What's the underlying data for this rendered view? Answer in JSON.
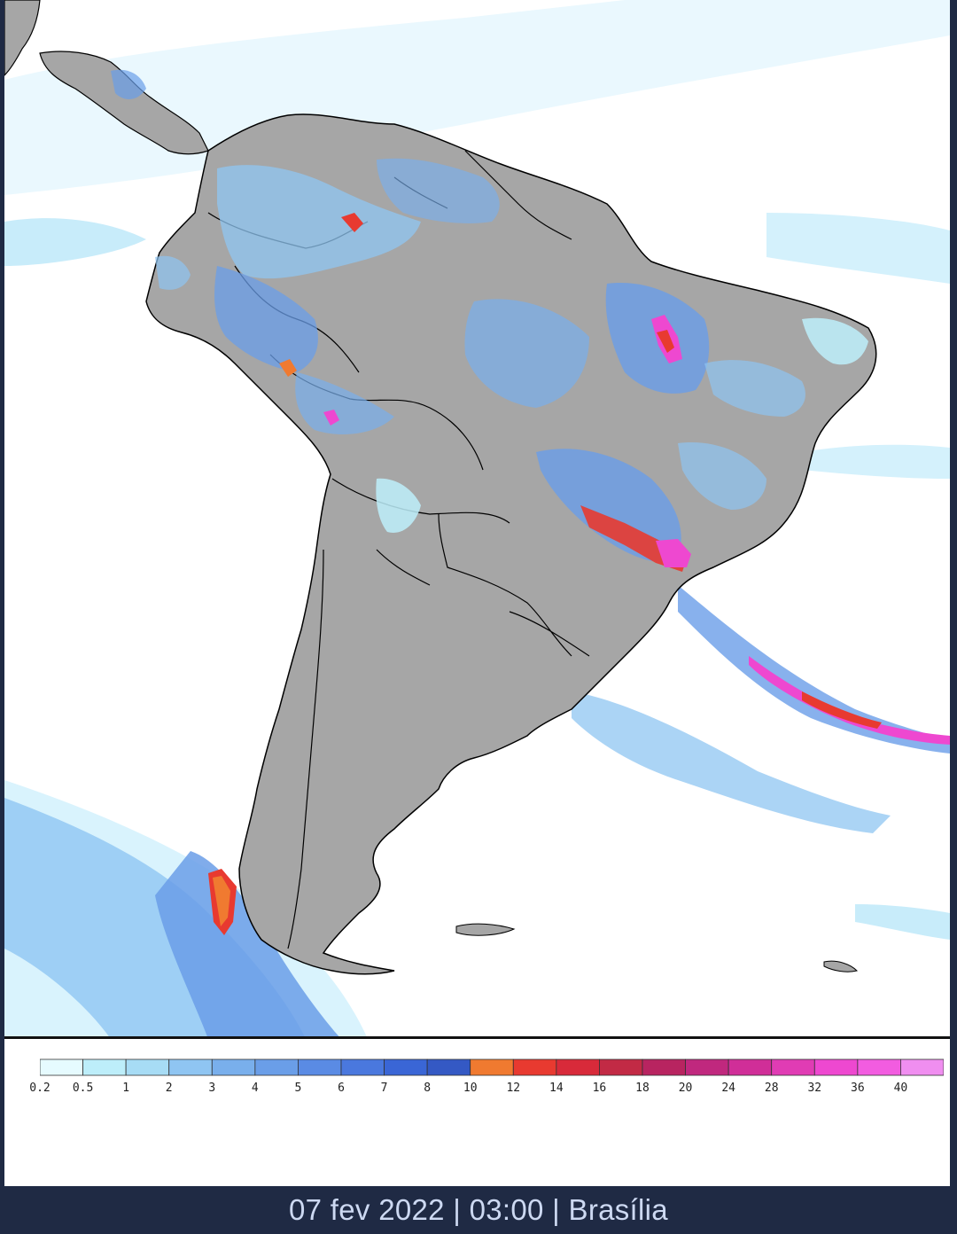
{
  "map": {
    "land_color": "#a6a6a6",
    "ocean_color": "#ffffff",
    "border_color": "#000000"
  },
  "legend": {
    "levels": [
      "0.2",
      "0.5",
      "1",
      "2",
      "3",
      "4",
      "5",
      "6",
      "7",
      "8",
      "10",
      "12",
      "14",
      "16",
      "18",
      "20",
      "24",
      "28",
      "32",
      "36",
      "40"
    ],
    "colors": [
      "#e6fbff",
      "#bdeefa",
      "#a7dcf5",
      "#8fc5f2",
      "#79afec",
      "#6a9ee8",
      "#5a8be4",
      "#4a78de",
      "#3a66d6",
      "#3459c4",
      "#f07a30",
      "#e83a30",
      "#d82a3a",
      "#c22a45",
      "#b82460",
      "#c0287e",
      "#d02e98",
      "#e03cb4",
      "#ee48d0",
      "#f25ce0",
      "#f08ef0"
    ]
  },
  "footer": {
    "text": "07 fev 2022 | 03:00 | Brasília"
  }
}
